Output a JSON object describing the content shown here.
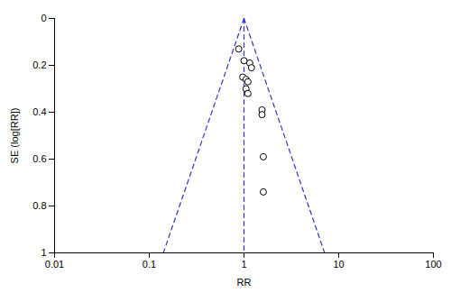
{
  "chart_data": {
    "type": "scatter",
    "xlabel": "RR",
    "ylabel": "SE (log[RR])",
    "log": "x",
    "grid": false,
    "xlim": [
      0.01,
      100
    ],
    "ylim": [
      1,
      0
    ],
    "xticks": [
      0.01,
      0.1,
      1,
      10,
      100
    ],
    "yticks": [
      0,
      0.2,
      0.4,
      0.6,
      0.8,
      1
    ],
    "series": [
      {
        "type": "line",
        "color": "#3333cc",
        "line_style": "dashed",
        "x": [
          1,
          0.140858
        ],
        "values": [
          0,
          1
        ]
      },
      {
        "type": "line",
        "color": "#3333cc",
        "line_style": "dashed",
        "x": [
          1,
          7.099327
        ],
        "values": [
          0,
          1
        ]
      },
      {
        "type": "line",
        "color": "#3333cc",
        "line_style": "dashed",
        "x": [
          1,
          1
        ],
        "values": [
          0,
          1
        ]
      },
      {
        "type": "scatter",
        "marker": "circle",
        "x": [
          0.88,
          1.0,
          1.15,
          1.2,
          0.97,
          1.05,
          1.1,
          1.05,
          1.1,
          1.55,
          1.55,
          1.6,
          1.6
        ],
        "values": [
          0.13,
          0.18,
          0.19,
          0.21,
          0.25,
          0.26,
          0.27,
          0.3,
          0.32,
          0.39,
          0.41,
          0.59,
          0.74
        ]
      }
    ]
  }
}
